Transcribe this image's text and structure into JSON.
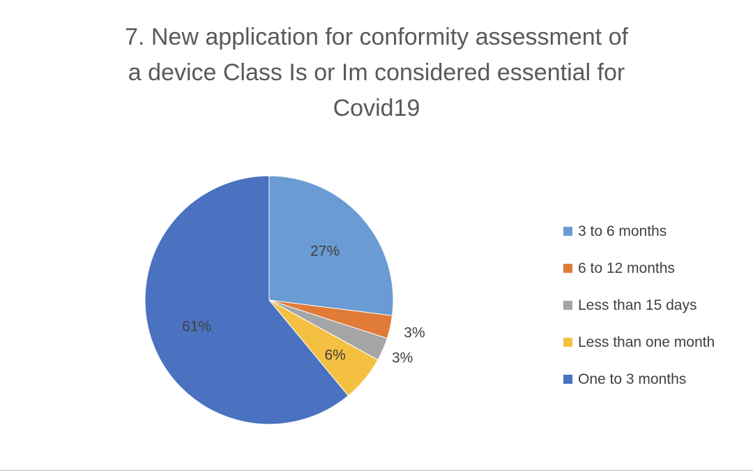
{
  "chart_data": {
    "type": "pie",
    "title_lines": [
      "7. New application for conformity assessment  of",
      "a device Class Is or Im considered essential for",
      "Covid19"
    ],
    "slices": [
      {
        "name": "3 to 6 months",
        "value": 27,
        "label": "27%",
        "color": "#6a9bd3"
      },
      {
        "name": "6 to 12 months",
        "value": 3,
        "label": "3%",
        "color": "#e07b39"
      },
      {
        "name": "Less than 15 days",
        "value": 3,
        "label": "3%",
        "color": "#a5a5a5"
      },
      {
        "name": "Less than one month",
        "value": 6,
        "label": "6%",
        "color": "#f4c042"
      },
      {
        "name": "One to 3 months",
        "value": 61,
        "label": "61%",
        "color": "#4a72c0"
      }
    ],
    "legend_position": "right"
  }
}
